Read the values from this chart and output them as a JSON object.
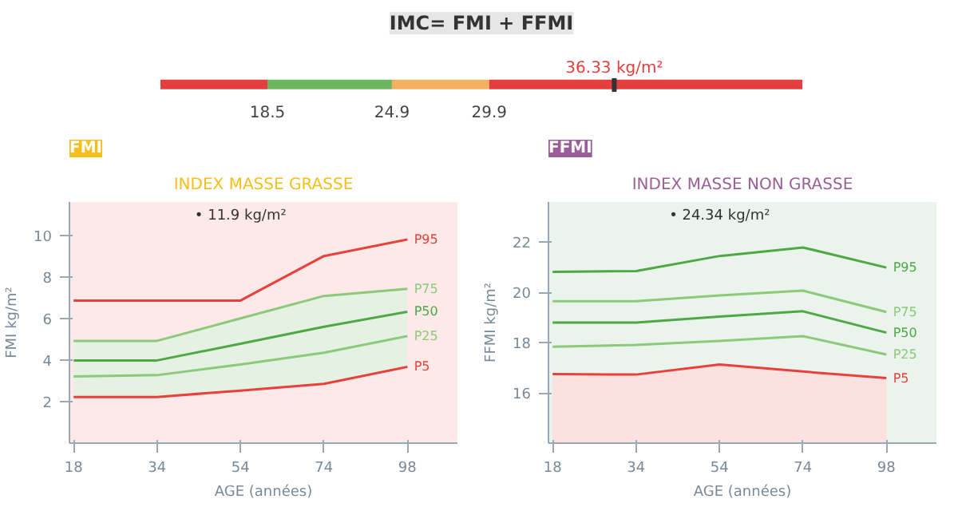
{
  "chart_data": [
    {
      "type": "bar",
      "orientation": "horizontal",
      "title": "IMC= FMI + FFMI",
      "categories": [
        null
      ],
      "xlim": [
        13,
        46
      ],
      "xticks": [
        18.5,
        24.9,
        29.9
      ],
      "series": [
        {
          "color": "#e53e3e",
          "values": [
            5.5
          ],
          "base": [
            13
          ]
        },
        {
          "color": "#6db85f",
          "values": [
            6.4
          ],
          "base": [
            18.5
          ]
        },
        {
          "color": "#f5b062",
          "values": [
            5.0
          ],
          "base": [
            24.9
          ]
        },
        {
          "color": "#e53e3e",
          "values": [
            16.1
          ],
          "base": [
            29.9
          ]
        }
      ],
      "ref_lines": [
        {
          "axis": "x",
          "value": 36.33,
          "label": "36.33 kg/m²",
          "color": "#333333"
        }
      ]
    },
    {
      "type": "line",
      "title": "FMI",
      "subtitle": "INDEX MASSE GRASSE",
      "xlabel": "AGE (années)",
      "ylabel": "FMI kg/m²",
      "categories": [
        "18",
        "34",
        "54",
        "74",
        "98"
      ],
      "ylim": [
        0,
        11.6
      ],
      "yticks": [
        2,
        4,
        6,
        8,
        10
      ],
      "grid": false,
      "marker": "none",
      "series": [
        {
          "name": "P95",
          "color": "#e8413c",
          "values": [
            6.86,
            6.86,
            6.86,
            9.0,
            9.8
          ]
        },
        {
          "name": "P75",
          "color": "#8cc97a",
          "values": [
            4.92,
            4.92,
            6.0,
            7.08,
            7.42
          ]
        },
        {
          "name": "P50",
          "color": "#4fa845",
          "values": [
            3.98,
            3.98,
            4.78,
            5.6,
            6.32
          ],
          "lower": [
            2.22,
            2.22,
            2.53,
            2.85,
            3.67
          ],
          "upper": [
            4.92,
            4.92,
            6.0,
            7.08,
            7.42
          ]
        },
        {
          "name": "P25",
          "color": "#8cc97a",
          "values": [
            3.21,
            3.27,
            3.78,
            4.35,
            5.15
          ]
        },
        {
          "name": "P5",
          "color": "#e8413c",
          "values": [
            2.22,
            2.22,
            2.53,
            2.85,
            3.67
          ]
        }
      ],
      "annotations": [
        "• 11.9 kg/m²"
      ]
    },
    {
      "type": "line",
      "title": "FFMI",
      "subtitle": "INDEX MASSE NON GRASSE",
      "xlabel": "AGE (années)",
      "ylabel": "FFMI kg/m²",
      "categories": [
        "18",
        "34",
        "54",
        "74",
        "98"
      ],
      "ylim": [
        14,
        23.6
      ],
      "yticks": [
        16,
        18,
        20,
        22
      ],
      "grid": false,
      "marker": "none",
      "series": [
        {
          "name": "P95",
          "color": "#4fa845",
          "values": [
            20.82,
            20.85,
            21.45,
            21.79,
            20.99
          ]
        },
        {
          "name": "P75",
          "color": "#8cc97a",
          "values": [
            19.65,
            19.65,
            19.88,
            20.07,
            19.22
          ]
        },
        {
          "name": "P50",
          "color": "#4fa845",
          "values": [
            18.8,
            18.8,
            19.04,
            19.25,
            18.4
          ]
        },
        {
          "name": "P25",
          "color": "#8cc97a",
          "values": [
            17.84,
            17.91,
            18.07,
            18.26,
            17.53
          ]
        },
        {
          "name": "P5",
          "color": "#e8413c",
          "values": [
            16.75,
            16.73,
            17.13,
            16.85,
            16.59
          ],
          "lower": [
            14,
            14,
            14,
            14,
            14
          ],
          "upper": [
            16.75,
            16.73,
            17.13,
            16.85,
            16.59
          ]
        }
      ],
      "annotations": [
        "• 24.34 kg/m²"
      ]
    }
  ]
}
